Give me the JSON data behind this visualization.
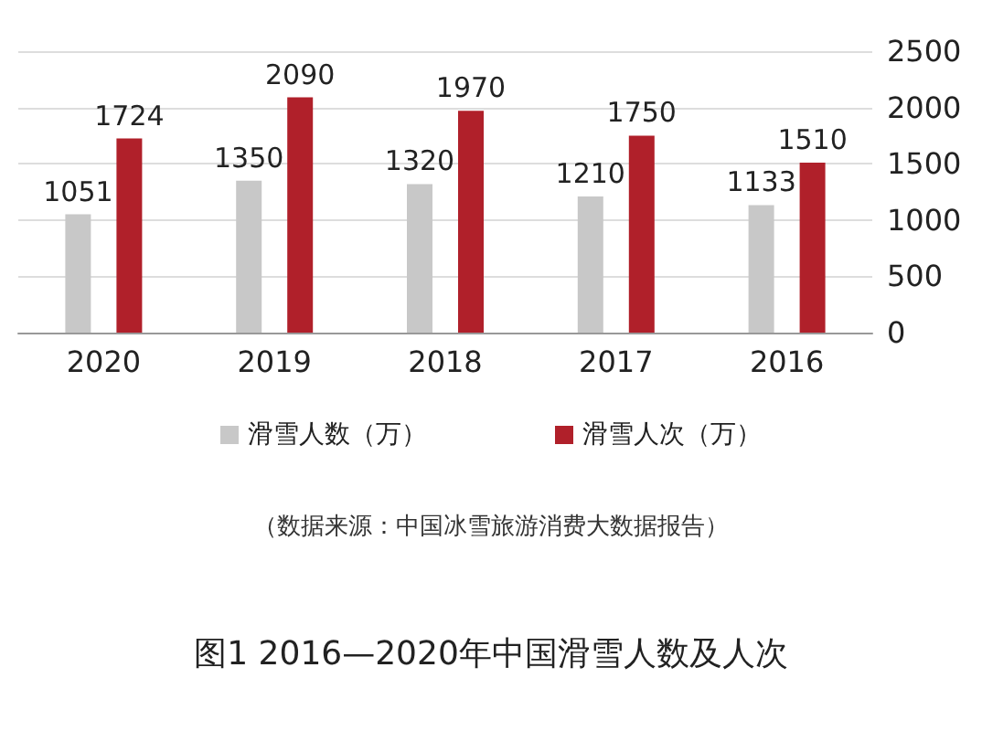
{
  "chart_data": {
    "type": "bar",
    "title": "图1 2016—2020年中国滑雪人数及人次",
    "categories": [
      "2020",
      "2019",
      "2018",
      "2017",
      "2016"
    ],
    "series": [
      {
        "name": "滑雪人数（万）",
        "color": "#c8c8c8",
        "values": [
          1051,
          1350,
          1320,
          1210,
          1133
        ]
      },
      {
        "name": "滑雪人次（万）",
        "color": "#b0202a",
        "values": [
          1724,
          2090,
          1970,
          1750,
          1510
        ]
      }
    ],
    "ylim": [
      0,
      2500
    ],
    "yticks": [
      0,
      500,
      1000,
      1500,
      2000,
      2500
    ],
    "grid": "y",
    "data_labels": true,
    "legend": "bottom",
    "annotations": [
      "（数据来源：中国冰雪旅游消费大数据报告）"
    ]
  }
}
